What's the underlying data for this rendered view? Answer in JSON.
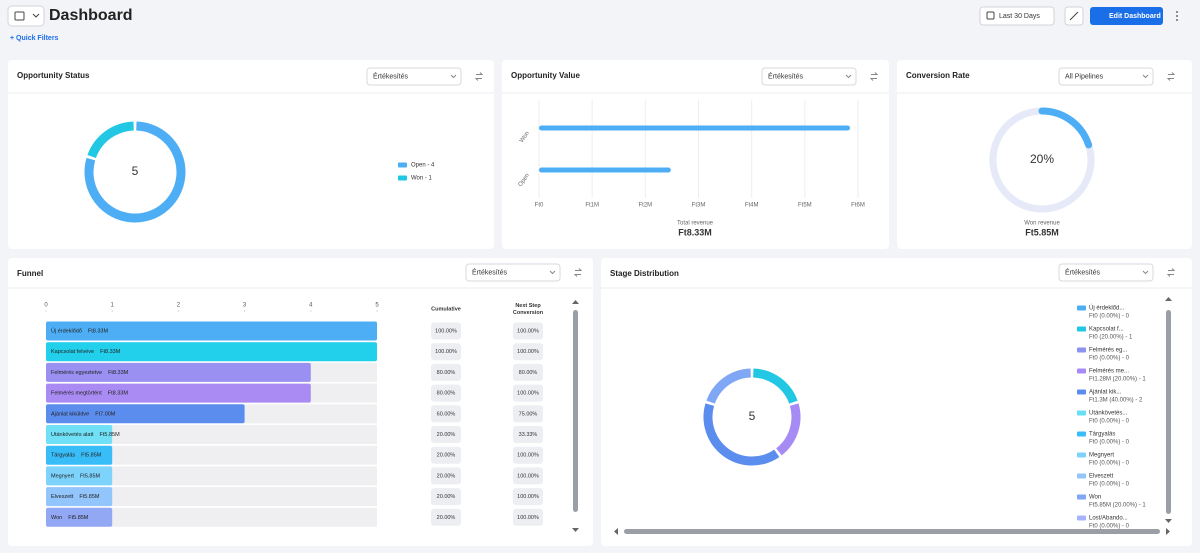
{
  "header": {
    "title": "Dashboard",
    "quick_filters": "+ Quick Filters",
    "date_range": "Last 30 Days",
    "edit_button": "Edit Dashboard"
  },
  "chart_data": [
    {
      "type": "donut",
      "title": "Opportunity Status",
      "filter": "Értékesítés",
      "categories": [
        "Open",
        "Won"
      ],
      "values": [
        4,
        1
      ],
      "legend_labels": [
        "Open - 4",
        "Won - 1"
      ],
      "colors": [
        "#4daef5",
        "#22c7e4"
      ],
      "total": 5
    },
    {
      "type": "hbar",
      "title": "Opportunity Value",
      "filter": "Értékesítés",
      "categories": [
        "Won",
        "Open"
      ],
      "values": [
        5850000,
        2480000
      ],
      "color": "#4daef5",
      "xlim": [
        0,
        6000000
      ],
      "xticks": [
        {
          "value": 0,
          "label": "Ft0"
        },
        {
          "value": 1000000,
          "label": "Ft1M"
        },
        {
          "value": 2000000,
          "label": "Ft2M"
        },
        {
          "value": 3000000,
          "label": "Ft3M"
        },
        {
          "value": 4000000,
          "label": "Ft4M"
        },
        {
          "value": 5000000,
          "label": "Ft5M"
        },
        {
          "value": 6000000,
          "label": "Ft6M"
        }
      ],
      "grid": true,
      "footer_label": "Total revenue",
      "footer_value": "Ft8.33M"
    },
    {
      "type": "gauge",
      "title": "Conversion Rate",
      "filter": "All Pipelines",
      "value": 20,
      "value_label": "20%",
      "ylim": [
        0,
        100
      ],
      "color": "#4daef5",
      "track_color": "#e6e9f7",
      "footer_label": "Won revenue",
      "footer_value": "Ft5.85M"
    },
    {
      "type": "funnel",
      "title": "Funnel",
      "filter": "Értékesítés",
      "categories": [
        "Új érdeklődő",
        "Kapcsolat felvéve",
        "Felmérés egyeztetve",
        "Felmérés megtörtént",
        "Ajánlat kiküldve",
        "Utánkövetés alatt",
        "Tárgyalás",
        "Megnyert",
        "Elveszett",
        "Won"
      ],
      "values": [
        5,
        5,
        4,
        4,
        3,
        1,
        1,
        1,
        1,
        1
      ],
      "amounts": [
        "Ft8.33M",
        "Ft8.33M",
        "Ft8.33M",
        "Ft8.33M",
        "Ft7.00M",
        "Ft5.85M",
        "Ft5.85M",
        "Ft5.85M",
        "Ft5.85M",
        "Ft5.85M"
      ],
      "colors": [
        "#4daef5",
        "#22d0ec",
        "#9a90f2",
        "#a98bf3",
        "#5b8def",
        "#6fe0f5",
        "#38bdf8",
        "#7dd3fc",
        "#93c5fd",
        "#93a8f5"
      ],
      "xlim": [
        0,
        5
      ],
      "xticks": [
        0,
        1,
        2,
        3,
        4,
        5
      ],
      "columns": [
        {
          "header": [
            "Cumulative"
          ],
          "cells": [
            "100.00%",
            "100.00%",
            "80.00%",
            "80.00%",
            "60.00%",
            "20.00%",
            "20.00%",
            "20.00%",
            "20.00%",
            "20.00%"
          ]
        },
        {
          "header": [
            "Next Step",
            "Conversion"
          ],
          "cells": [
            "100.00%",
            "100.00%",
            "80.00%",
            "100.00%",
            "75.00%",
            "33.33%",
            "100.00%",
            "100.00%",
            "100.00%",
            "100.00%"
          ]
        }
      ]
    },
    {
      "type": "donut",
      "title": "Stage Distribution",
      "filter": "Értékesítés",
      "categories": [
        "Új érdeklőd...",
        "Kapcsolat f...",
        "Felmérés eg...",
        "Felmérés me...",
        "Ajánlat kik...",
        "Utánkövetés...",
        "Tárgyalás",
        "Megnyert",
        "Elveszett",
        "Won",
        "Lost/Abando..."
      ],
      "values": [
        0,
        1,
        0,
        1,
        2,
        0,
        0,
        0,
        0,
        1,
        0
      ],
      "legend_labels": [
        "Ft0 (0.00%) - 0",
        "Ft0 (20.00%) - 1",
        "Ft0 (0.00%) - 0",
        "Ft1.28M (20.00%) - 1",
        "Ft1.3M (40.00%) - 2",
        "Ft0 (0.00%) - 0",
        "Ft0 (0.00%) - 0",
        "Ft0 (0.00%) - 0",
        "Ft0 (0.00%) - 0",
        "Ft5.85M (20.00%) - 1",
        "Ft0 (0.00%) - 0"
      ],
      "colors": [
        "#4daef5",
        "#22c7e4",
        "#8b93f0",
        "#a78bf5",
        "#5b8def",
        "#67e0f5",
        "#38bdf8",
        "#7dd3fc",
        "#93c5fd",
        "#7fa7f5",
        "#a5b4fc"
      ],
      "total": 5
    }
  ]
}
